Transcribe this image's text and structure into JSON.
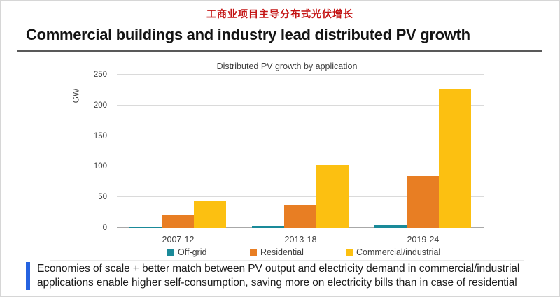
{
  "page": {
    "title_cn": "工商业项目主导分布式光伏增长",
    "title_en": "Commercial buildings and industry lead distributed PV growth",
    "note": {
      "lines": [
        "Economies of scale + better match between PV output and electricity demand in commercial/industrial",
        "applications enable higher self-consumption, saving more on electricity bills than in case of residential"
      ],
      "accent_color": "#2563e0"
    }
  },
  "colors": {
    "title_cn_red": "#c41414",
    "gridline": "#dadada",
    "baseline": "#a8a8a8",
    "axis_text": "#3f3f3f"
  },
  "chart_data": {
    "type": "bar",
    "title": "Distributed PV growth by application",
    "ylabel": "GW",
    "xlabel": "",
    "categories": [
      "2007-12",
      "2013-18",
      "2019-24"
    ],
    "series": [
      {
        "name": "Off-grid",
        "color": "#1a8a99",
        "values": [
          1,
          2,
          5
        ]
      },
      {
        "name": "Residential",
        "color": "#e87e23",
        "values": [
          20,
          36,
          85
        ]
      },
      {
        "name": "Commercial/industrial",
        "color": "#fcc011",
        "values": [
          45,
          103,
          227
        ]
      }
    ],
    "ylim": [
      0,
      250
    ],
    "ytick_step": 50,
    "grid": true,
    "legend_position": "bottom"
  }
}
